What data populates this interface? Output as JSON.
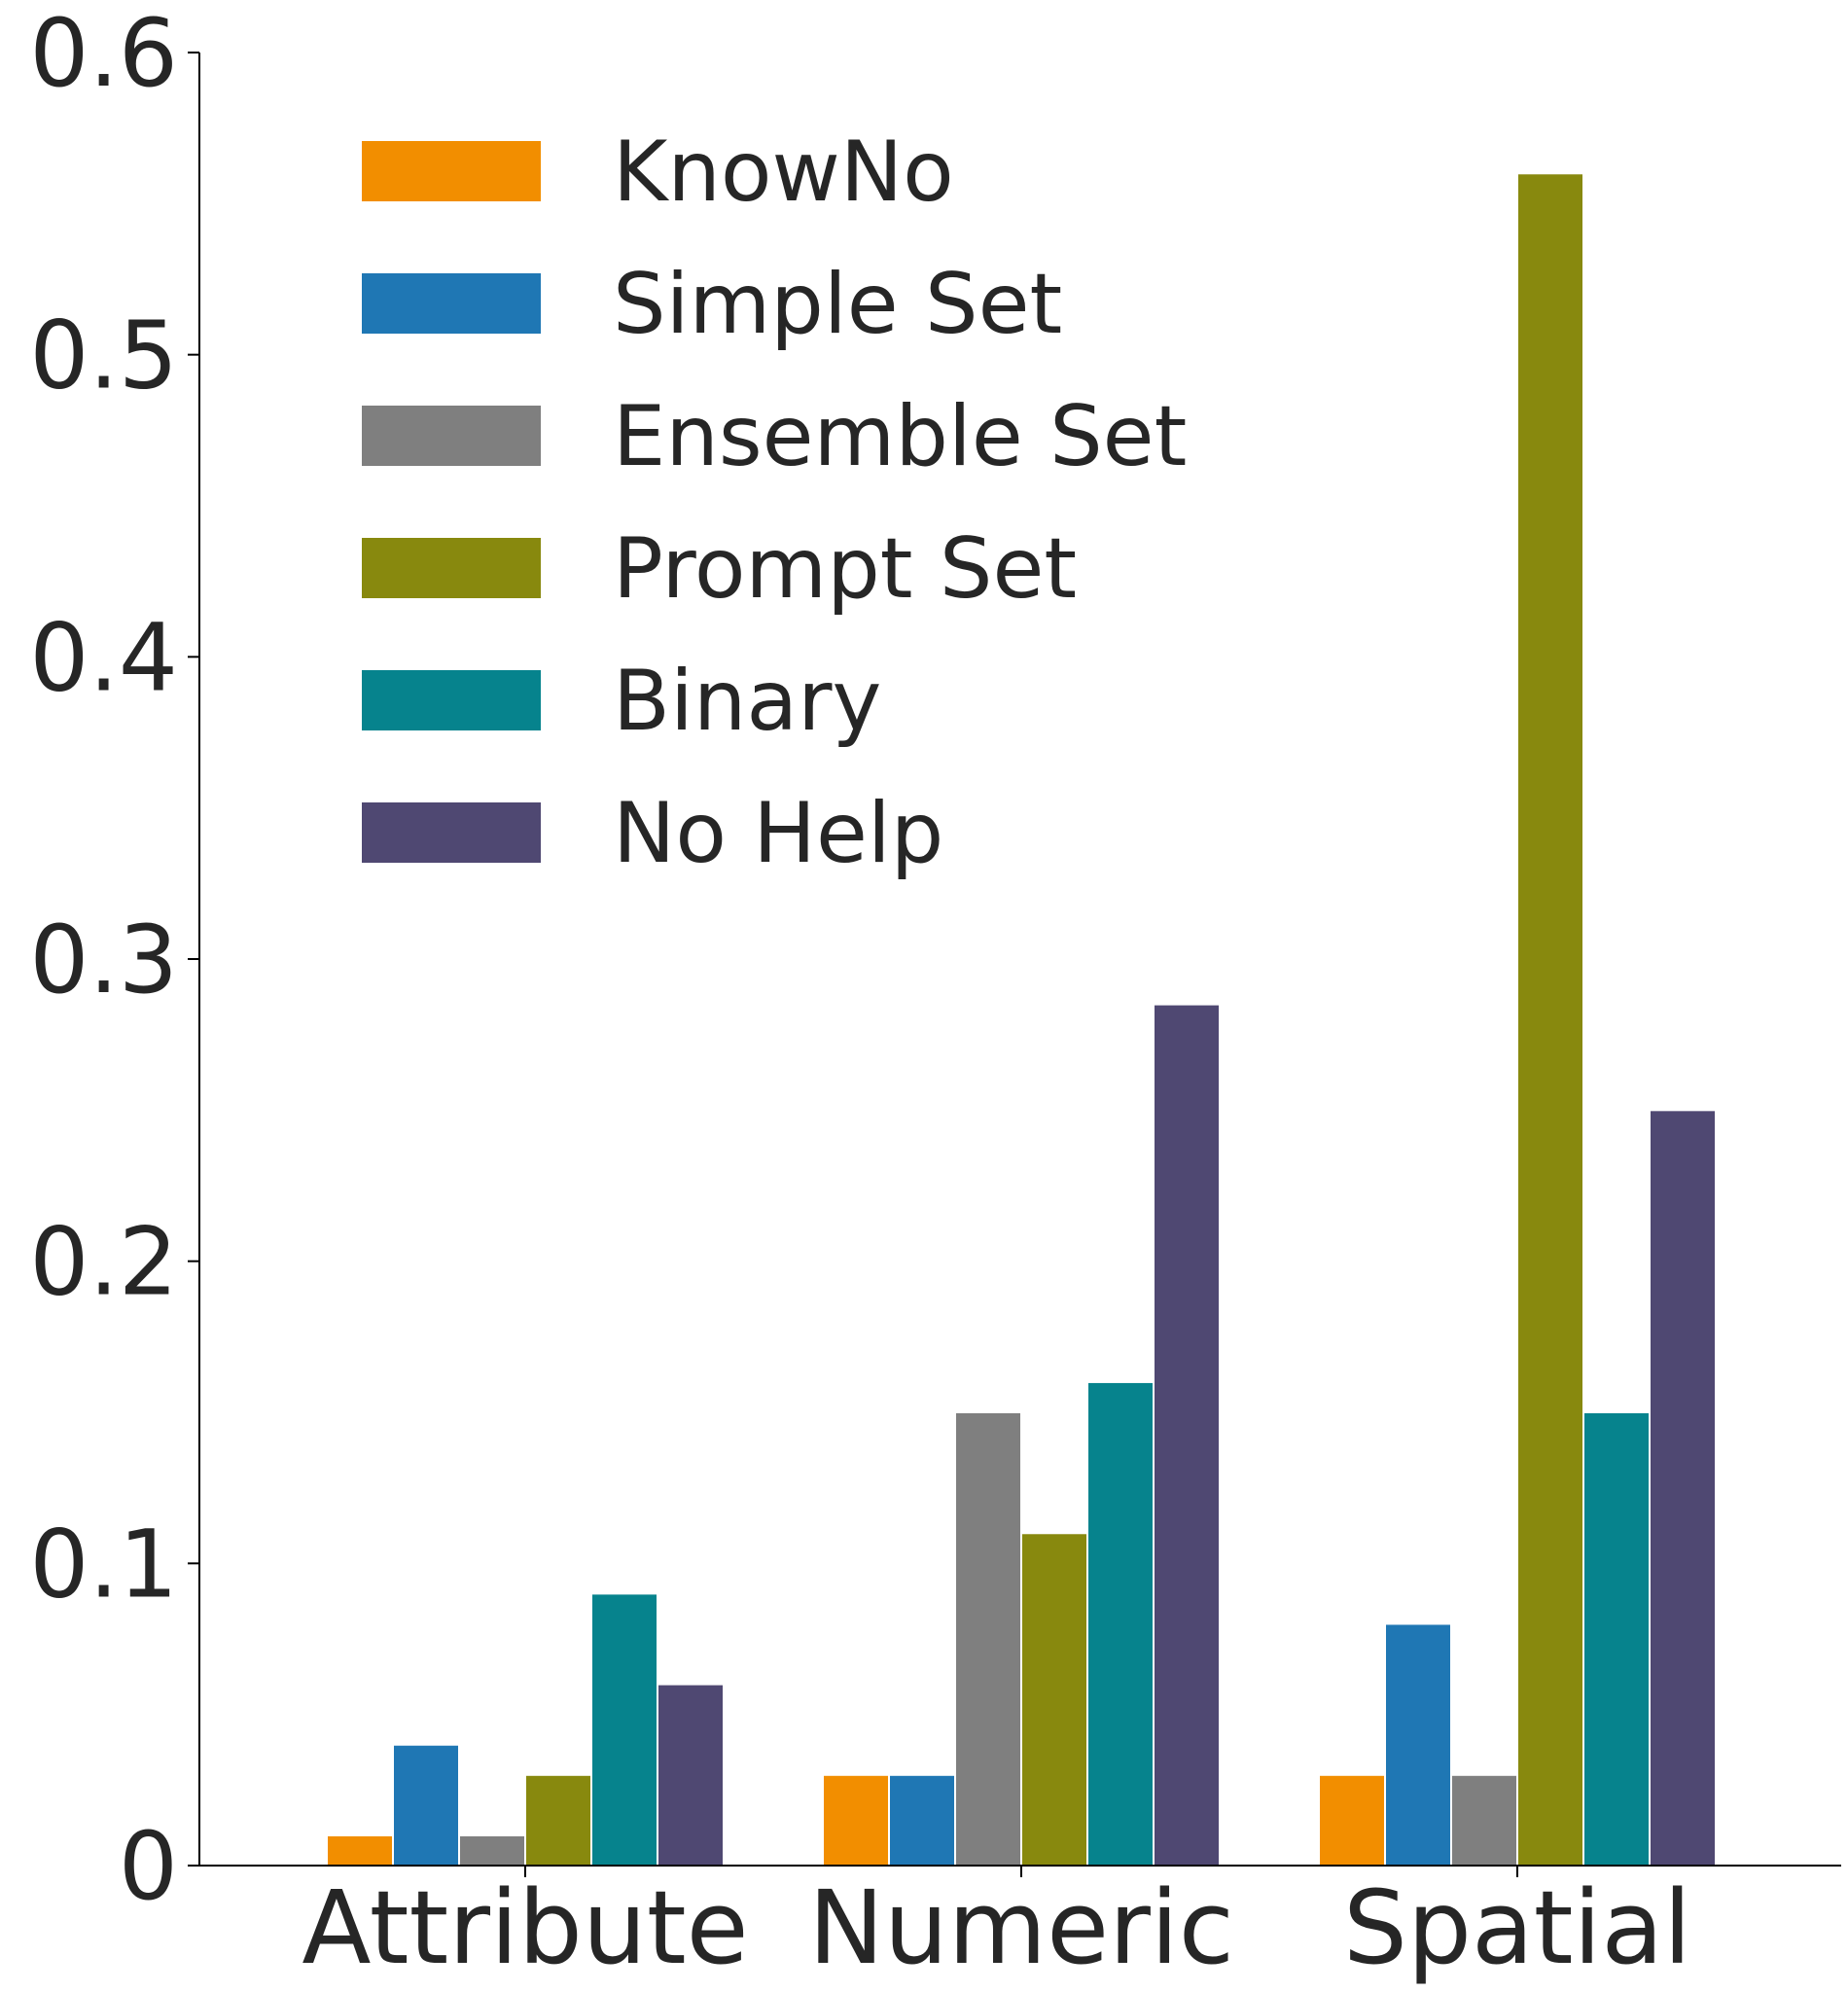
{
  "chart_data": {
    "type": "bar",
    "title": "",
    "xlabel": "",
    "ylabel": "",
    "ylim": [
      0,
      0.6
    ],
    "yticks": [
      0,
      0.1,
      0.2,
      0.3,
      0.4,
      0.5,
      0.6
    ],
    "ytick_labels": [
      "0",
      "0.1",
      "0.2",
      "0.3",
      "0.4",
      "0.5",
      "0.6"
    ],
    "categories": [
      "Attribute",
      "Numeric",
      "Spatial"
    ],
    "series": [
      {
        "name": "KnowNo",
        "color": "#F28E00",
        "values": [
          0.01,
          0.03,
          0.03
        ]
      },
      {
        "name": "Simple Set",
        "color": "#1F77B4",
        "values": [
          0.04,
          0.03,
          0.08
        ]
      },
      {
        "name": "Ensemble Set",
        "color": "#7F7F7F",
        "values": [
          0.01,
          0.15,
          0.03
        ]
      },
      {
        "name": "Prompt Set",
        "color": "#88890E",
        "values": [
          0.03,
          0.11,
          0.56
        ]
      },
      {
        "name": "Binary",
        "color": "#06838D",
        "values": [
          0.09,
          0.16,
          0.15
        ]
      },
      {
        "name": "No Help",
        "color": "#4F4872",
        "values": [
          0.06,
          0.285,
          0.25
        ]
      }
    ],
    "grid": false,
    "legend_position": "top-left",
    "spines": "left-bottom"
  }
}
